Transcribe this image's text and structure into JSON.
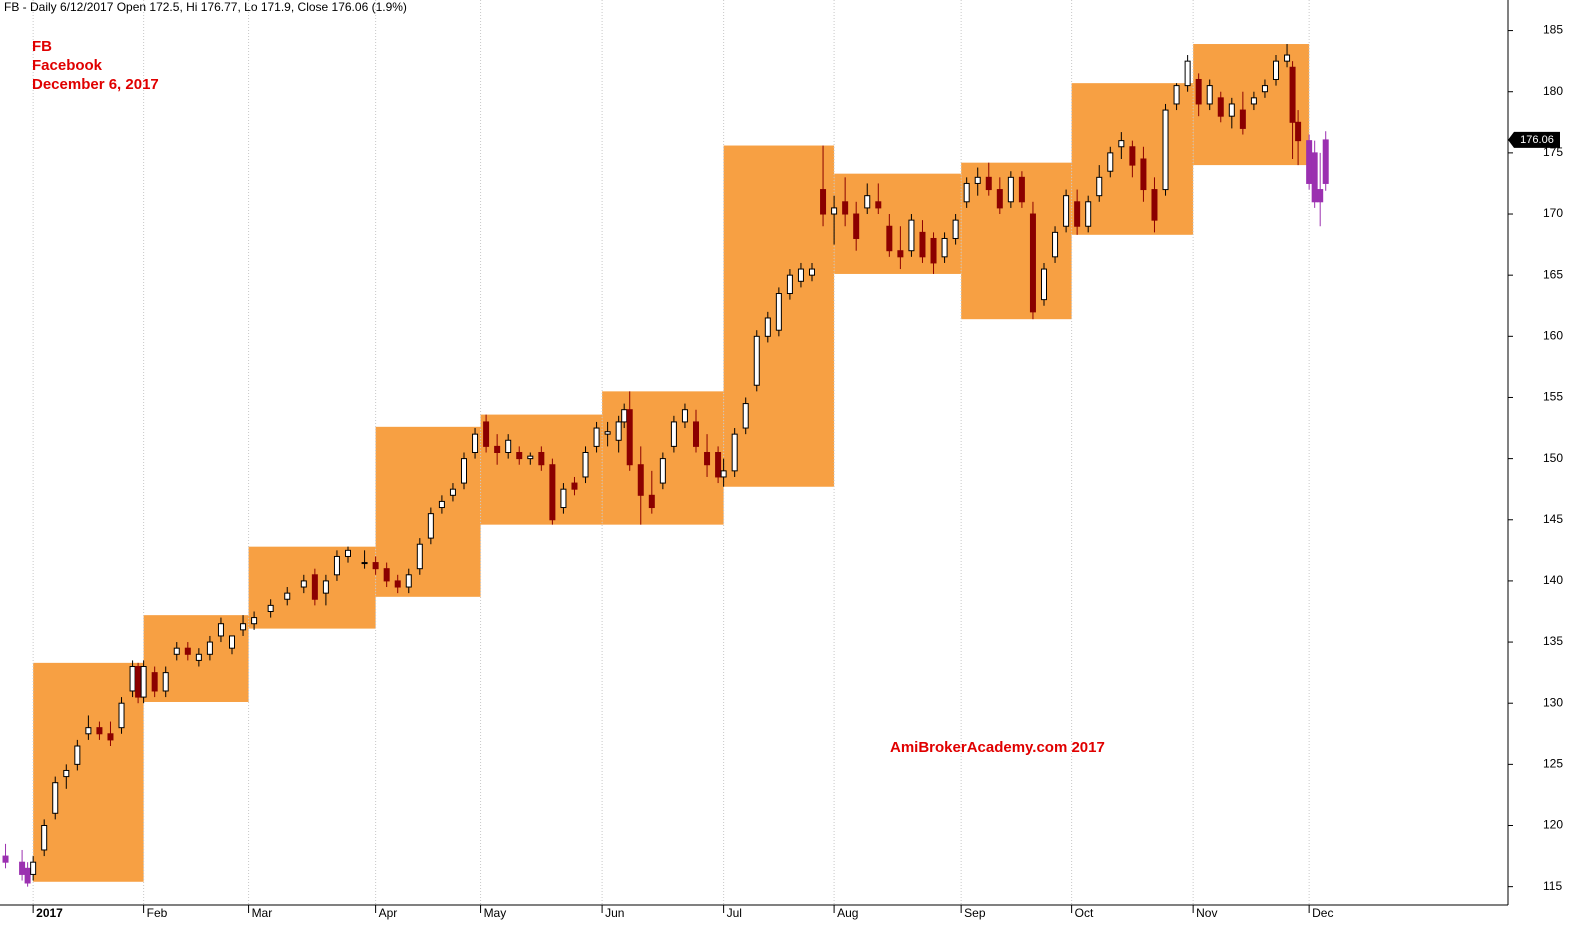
{
  "chart_data": {
    "type": "candlestick",
    "header": "FB - Daily 6/12/2017 Open 172.5, Hi 176.77, Lo 171.9, Close 176.06 (1.9%)",
    "annotations": [
      "FB",
      "Facebook",
      "December 6, 2017"
    ],
    "watermark": "AmiBrokerAcademy.com  2017",
    "xlim": [
      -6,
      267
    ],
    "ylim": [
      113.5,
      187.5
    ],
    "xticks": [
      {
        "value": 0,
        "label": "2017"
      },
      {
        "value": 20,
        "label": "Feb"
      },
      {
        "value": 39,
        "label": "Mar"
      },
      {
        "value": 62,
        "label": "Apr"
      },
      {
        "value": 81,
        "label": "May"
      },
      {
        "value": 103,
        "label": "Jun"
      },
      {
        "value": 125,
        "label": "Jul"
      },
      {
        "value": 145,
        "label": "Aug"
      },
      {
        "value": 168,
        "label": "Sep"
      },
      {
        "value": 188,
        "label": "Oct"
      },
      {
        "value": 210,
        "label": "Nov"
      },
      {
        "value": 231,
        "label": "Dec"
      }
    ],
    "yticks": [
      115,
      120,
      125,
      130,
      135,
      140,
      145,
      150,
      155,
      160,
      165,
      170,
      175,
      180,
      185
    ],
    "grid": true,
    "up_color": "#ffffff",
    "down_color": "#8b0000",
    "outside_color": "#9b30b0",
    "box_color": "#f7a043",
    "range_boxes": [
      {
        "start": 0,
        "end": 20,
        "high": 133.3,
        "low": 115.4
      },
      {
        "start": 20,
        "end": 39,
        "high": 137.2,
        "low": 130.1
      },
      {
        "start": 39,
        "end": 62,
        "high": 142.8,
        "low": 136.1
      },
      {
        "start": 62,
        "end": 81,
        "high": 152.6,
        "low": 138.7
      },
      {
        "start": 81,
        "end": 103,
        "high": 153.6,
        "low": 144.6
      },
      {
        "start": 103,
        "end": 125,
        "high": 155.5,
        "low": 144.6
      },
      {
        "start": 125,
        "end": 145,
        "high": 175.6,
        "low": 147.7
      },
      {
        "start": 145,
        "end": 168,
        "high": 173.3,
        "low": 165.1
      },
      {
        "start": 168,
        "end": 188,
        "high": 174.2,
        "low": 161.4
      },
      {
        "start": 188,
        "end": 210,
        "high": 180.7,
        "low": 168.3
      },
      {
        "start": 210,
        "end": 231,
        "high": 183.9,
        "low": 174.0
      }
    ],
    "candles": [
      {
        "x": -5,
        "open": 117,
        "high": 118.5,
        "low": 116.5,
        "close": 117.5
      },
      {
        "x": -2,
        "open": 117,
        "high": 118,
        "low": 115.5,
        "close": 116
      },
      {
        "x": -1,
        "open": 116.5,
        "high": 117,
        "low": 115,
        "close": 115.3
      },
      {
        "x": 0,
        "open": 116,
        "high": 117.5,
        "low": 115.5,
        "close": 117
      },
      {
        "x": 2,
        "open": 118,
        "high": 120.5,
        "low": 117.5,
        "close": 120
      },
      {
        "x": 4,
        "open": 121,
        "high": 124,
        "low": 120.5,
        "close": 123.5
      },
      {
        "x": 6,
        "open": 124,
        "high": 125,
        "low": 123,
        "close": 124.5
      },
      {
        "x": 8,
        "open": 125,
        "high": 127,
        "low": 124.5,
        "close": 126.5
      },
      {
        "x": 10,
        "open": 127.5,
        "high": 129,
        "low": 127,
        "close": 128
      },
      {
        "x": 12,
        "open": 128,
        "high": 128.5,
        "low": 127,
        "close": 127.5
      },
      {
        "x": 14,
        "open": 127.5,
        "high": 128.5,
        "low": 126.5,
        "close": 127
      },
      {
        "x": 16,
        "open": 128,
        "high": 130.5,
        "low": 127.5,
        "close": 130
      },
      {
        "x": 18,
        "open": 131,
        "high": 133.5,
        "low": 130.5,
        "close": 133
      },
      {
        "x": 19,
        "open": 133,
        "high": 133.3,
        "low": 130,
        "close": 130.5
      },
      {
        "x": 20,
        "open": 130.5,
        "high": 133.5,
        "low": 130,
        "close": 133
      },
      {
        "x": 22,
        "open": 132.5,
        "high": 133,
        "low": 130.5,
        "close": 131
      },
      {
        "x": 24,
        "open": 131,
        "high": 133,
        "low": 130.5,
        "close": 132.5
      },
      {
        "x": 26,
        "open": 134,
        "high": 135,
        "low": 133.5,
        "close": 134.5
      },
      {
        "x": 28,
        "open": 134.5,
        "high": 135,
        "low": 133.5,
        "close": 134
      },
      {
        "x": 30,
        "open": 133.5,
        "high": 134.5,
        "low": 133,
        "close": 134
      },
      {
        "x": 32,
        "open": 134,
        "high": 135.5,
        "low": 133.5,
        "close": 135
      },
      {
        "x": 34,
        "open": 135.5,
        "high": 137,
        "low": 135,
        "close": 136.5
      },
      {
        "x": 36,
        "open": 134.5,
        "high": 135.5,
        "low": 134,
        "close": 135.5
      },
      {
        "x": 38,
        "open": 136,
        "high": 137.2,
        "low": 135.5,
        "close": 136.5
      },
      {
        "x": 40,
        "open": 136.5,
        "high": 137.5,
        "low": 136,
        "close": 137
      },
      {
        "x": 43,
        "open": 137.5,
        "high": 138.5,
        "low": 137,
        "close": 138
      },
      {
        "x": 46,
        "open": 138.5,
        "high": 139.5,
        "low": 138,
        "close": 139
      },
      {
        "x": 49,
        "open": 139.5,
        "high": 140.5,
        "low": 139,
        "close": 140
      },
      {
        "x": 51,
        "open": 140.5,
        "high": 141,
        "low": 138,
        "close": 138.5
      },
      {
        "x": 53,
        "open": 139,
        "high": 140.5,
        "low": 138,
        "close": 140
      },
      {
        "x": 55,
        "open": 140.5,
        "high": 142.5,
        "low": 140,
        "close": 142
      },
      {
        "x": 57,
        "open": 142,
        "high": 142.8,
        "low": 141.5,
        "close": 142.5
      },
      {
        "x": 60,
        "open": 141.5,
        "high": 142.5,
        "low": 141,
        "close": 141.5
      },
      {
        "x": 62,
        "open": 141.5,
        "high": 142,
        "low": 140.5,
        "close": 141
      },
      {
        "x": 64,
        "open": 141,
        "high": 141.5,
        "low": 139.5,
        "close": 140
      },
      {
        "x": 66,
        "open": 140,
        "high": 140.5,
        "low": 139,
        "close": 139.5
      },
      {
        "x": 68,
        "open": 139.5,
        "high": 141,
        "low": 139,
        "close": 140.5
      },
      {
        "x": 70,
        "open": 141,
        "high": 143.5,
        "low": 140.5,
        "close": 143
      },
      {
        "x": 72,
        "open": 143.5,
        "high": 146,
        "low": 143,
        "close": 145.5
      },
      {
        "x": 74,
        "open": 146,
        "high": 147,
        "low": 145.5,
        "close": 146.5
      },
      {
        "x": 76,
        "open": 147,
        "high": 148,
        "low": 146.5,
        "close": 147.5
      },
      {
        "x": 78,
        "open": 148,
        "high": 150.5,
        "low": 147.5,
        "close": 150
      },
      {
        "x": 80,
        "open": 150.5,
        "high": 152.5,
        "low": 150,
        "close": 152
      },
      {
        "x": 82,
        "open": 153,
        "high": 153.6,
        "low": 150.5,
        "close": 151
      },
      {
        "x": 84,
        "open": 151,
        "high": 152,
        "low": 149.5,
        "close": 150.5
      },
      {
        "x": 86,
        "open": 150.5,
        "high": 152,
        "low": 150,
        "close": 151.5
      },
      {
        "x": 88,
        "open": 150.5,
        "high": 151,
        "low": 149.5,
        "close": 150
      },
      {
        "x": 90,
        "open": 150,
        "high": 150.5,
        "low": 149.5,
        "close": 150.2
      },
      {
        "x": 92,
        "open": 150.5,
        "high": 151,
        "low": 149,
        "close": 149.5
      },
      {
        "x": 94,
        "open": 149.5,
        "high": 150,
        "low": 144.6,
        "close": 145
      },
      {
        "x": 96,
        "open": 146,
        "high": 148,
        "low": 145.5,
        "close": 147.5
      },
      {
        "x": 98,
        "open": 148,
        "high": 148.5,
        "low": 147,
        "close": 147.5
      },
      {
        "x": 100,
        "open": 148.5,
        "high": 151,
        "low": 148,
        "close": 150.5
      },
      {
        "x": 102,
        "open": 151,
        "high": 153,
        "low": 150.5,
        "close": 152.5
      },
      {
        "x": 104,
        "open": 152,
        "high": 153,
        "low": 151,
        "close": 152.2
      },
      {
        "x": 106,
        "open": 151.5,
        "high": 153.5,
        "low": 150.5,
        "close": 153
      },
      {
        "x": 107,
        "open": 153,
        "high": 154.5,
        "low": 152.5,
        "close": 154
      },
      {
        "x": 108,
        "open": 154,
        "high": 155.5,
        "low": 149,
        "close": 149.5
      },
      {
        "x": 110,
        "open": 149.5,
        "high": 151,
        "low": 144.6,
        "close": 147
      },
      {
        "x": 112,
        "open": 147,
        "high": 149,
        "low": 145.5,
        "close": 146
      },
      {
        "x": 114,
        "open": 148,
        "high": 150.5,
        "low": 147.5,
        "close": 150
      },
      {
        "x": 116,
        "open": 151,
        "high": 153.5,
        "low": 150.5,
        "close": 153
      },
      {
        "x": 118,
        "open": 153,
        "high": 154.5,
        "low": 152.5,
        "close": 154
      },
      {
        "x": 120,
        "open": 153,
        "high": 154,
        "low": 150.5,
        "close": 151
      },
      {
        "x": 122,
        "open": 150.5,
        "high": 152,
        "low": 148.5,
        "close": 149.5
      },
      {
        "x": 124,
        "open": 150.5,
        "high": 151,
        "low": 148,
        "close": 148.5
      },
      {
        "x": 125,
        "open": 148.5,
        "high": 150,
        "low": 147.7,
        "close": 149
      },
      {
        "x": 127,
        "open": 149,
        "high": 152.5,
        "low": 148.5,
        "close": 152
      },
      {
        "x": 129,
        "open": 152.5,
        "high": 155,
        "low": 152,
        "close": 154.5
      },
      {
        "x": 131,
        "open": 156,
        "high": 160.5,
        "low": 155.5,
        "close": 160
      },
      {
        "x": 133,
        "open": 160,
        "high": 162,
        "low": 159.5,
        "close": 161.5
      },
      {
        "x": 135,
        "open": 160.5,
        "high": 164,
        "low": 160,
        "close": 163.5
      },
      {
        "x": 137,
        "open": 163.5,
        "high": 165.5,
        "low": 163,
        "close": 165
      },
      {
        "x": 139,
        "open": 164.5,
        "high": 166,
        "low": 164,
        "close": 165.5
      },
      {
        "x": 141,
        "open": 165,
        "high": 166,
        "low": 164.5,
        "close": 165.5
      },
      {
        "x": 143,
        "open": 172,
        "high": 175.6,
        "low": 169,
        "close": 170
      },
      {
        "x": 145,
        "open": 170,
        "high": 171.5,
        "low": 167.5,
        "close": 170.5
      },
      {
        "x": 147,
        "open": 171,
        "high": 173,
        "low": 169,
        "close": 170
      },
      {
        "x": 149,
        "open": 170,
        "high": 171,
        "low": 167,
        "close": 168
      },
      {
        "x": 151,
        "open": 170.5,
        "high": 172.5,
        "low": 170,
        "close": 171.5
      },
      {
        "x": 153,
        "open": 171,
        "high": 172.5,
        "low": 170,
        "close": 170.5
      },
      {
        "x": 155,
        "open": 169,
        "high": 170,
        "low": 166.5,
        "close": 167
      },
      {
        "x": 157,
        "open": 167,
        "high": 169,
        "low": 165.5,
        "close": 166.5
      },
      {
        "x": 159,
        "open": 167,
        "high": 170,
        "low": 166.5,
        "close": 169.5
      },
      {
        "x": 161,
        "open": 168.5,
        "high": 169.5,
        "low": 166,
        "close": 166.5
      },
      {
        "x": 163,
        "open": 168,
        "high": 168.5,
        "low": 165.1,
        "close": 166
      },
      {
        "x": 165,
        "open": 166.5,
        "high": 168.5,
        "low": 166,
        "close": 168
      },
      {
        "x": 167,
        "open": 168,
        "high": 170,
        "low": 167.5,
        "close": 169.5
      },
      {
        "x": 169,
        "open": 171,
        "high": 173,
        "low": 170.5,
        "close": 172.5
      },
      {
        "x": 171,
        "open": 172.5,
        "high": 173.8,
        "low": 171.5,
        "close": 173
      },
      {
        "x": 173,
        "open": 173,
        "high": 174.2,
        "low": 171.5,
        "close": 172
      },
      {
        "x": 175,
        "open": 172,
        "high": 173,
        "low": 170,
        "close": 170.5
      },
      {
        "x": 177,
        "open": 171,
        "high": 173.5,
        "low": 170.5,
        "close": 173
      },
      {
        "x": 179,
        "open": 173,
        "high": 173.5,
        "low": 170.5,
        "close": 171
      },
      {
        "x": 181,
        "open": 170,
        "high": 171,
        "low": 161.4,
        "close": 162
      },
      {
        "x": 183,
        "open": 163,
        "high": 166,
        "low": 162.5,
        "close": 165.5
      },
      {
        "x": 185,
        "open": 166.5,
        "high": 169,
        "low": 166,
        "close": 168.5
      },
      {
        "x": 187,
        "open": 169,
        "high": 172,
        "low": 168.5,
        "close": 171.5
      },
      {
        "x": 189,
        "open": 171,
        "high": 172,
        "low": 168.3,
        "close": 169
      },
      {
        "x": 191,
        "open": 169,
        "high": 171.5,
        "low": 168.5,
        "close": 171
      },
      {
        "x": 193,
        "open": 171.5,
        "high": 174,
        "low": 171,
        "close": 173
      },
      {
        "x": 195,
        "open": 173.5,
        "high": 175.5,
        "low": 173,
        "close": 175
      },
      {
        "x": 197,
        "open": 175.5,
        "high": 176.7,
        "low": 174.5,
        "close": 176
      },
      {
        "x": 199,
        "open": 175.5,
        "high": 176,
        "low": 173,
        "close": 174
      },
      {
        "x": 201,
        "open": 174.5,
        "high": 175.5,
        "low": 171,
        "close": 172
      },
      {
        "x": 203,
        "open": 172,
        "high": 173,
        "low": 168.5,
        "close": 169.5
      },
      {
        "x": 205,
        "open": 172,
        "high": 179,
        "low": 171.5,
        "close": 178.5
      },
      {
        "x": 207,
        "open": 179,
        "high": 180.7,
        "low": 178.5,
        "close": 180.5
      },
      {
        "x": 209,
        "open": 180.5,
        "high": 183,
        "low": 180,
        "close": 182.5
      },
      {
        "x": 211,
        "open": 181,
        "high": 181.5,
        "low": 178,
        "close": 179
      },
      {
        "x": 213,
        "open": 179,
        "high": 181,
        "low": 178.5,
        "close": 180.5
      },
      {
        "x": 215,
        "open": 179.5,
        "high": 180,
        "low": 177.5,
        "close": 178
      },
      {
        "x": 217,
        "open": 178,
        "high": 179.5,
        "low": 177,
        "close": 179
      },
      {
        "x": 219,
        "open": 178.5,
        "high": 180,
        "low": 176.5,
        "close": 177
      },
      {
        "x": 221,
        "open": 179,
        "high": 180,
        "low": 178.5,
        "close": 179.5
      },
      {
        "x": 223,
        "open": 180,
        "high": 181,
        "low": 179.5,
        "close": 180.5
      },
      {
        "x": 225,
        "open": 181,
        "high": 183,
        "low": 180.5,
        "close": 182.5
      },
      {
        "x": 227,
        "open": 182.5,
        "high": 183.9,
        "low": 182,
        "close": 183
      },
      {
        "x": 228,
        "open": 182,
        "high": 182.5,
        "low": 174.5,
        "close": 177.5
      },
      {
        "x": 229,
        "open": 177.5,
        "high": 178.5,
        "low": 174,
        "close": 176
      },
      {
        "x": 231,
        "open": 176,
        "high": 176.5,
        "low": 172,
        "close": 172.5
      },
      {
        "x": 232,
        "open": 175,
        "high": 176,
        "low": 170.5,
        "close": 171
      },
      {
        "x": 233,
        "open": 171,
        "high": 175,
        "low": 169,
        "close": 172
      },
      {
        "x": 234,
        "open": 172.5,
        "high": 176.77,
        "low": 171.9,
        "close": 176.06
      }
    ]
  }
}
